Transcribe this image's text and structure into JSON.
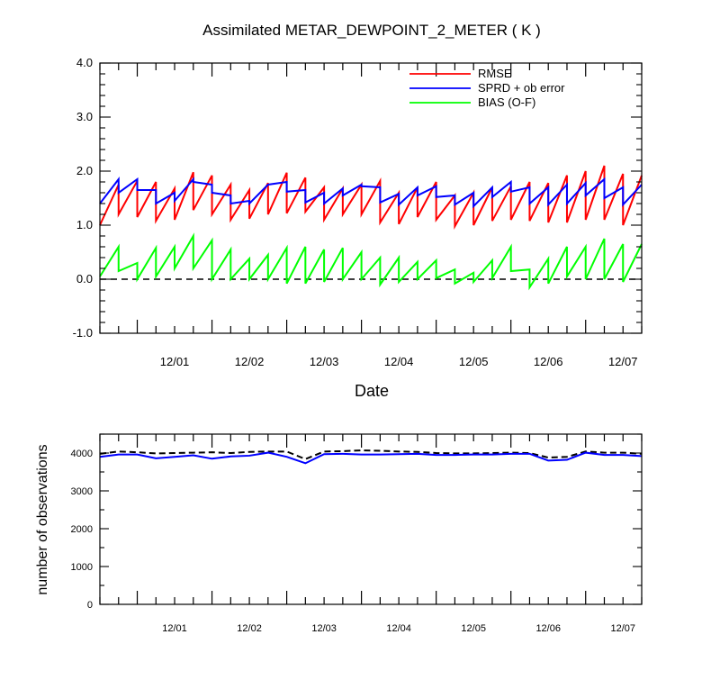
{
  "chart_data": [
    {
      "type": "line",
      "title": "Assimilated METAR_DEWPOINT_2_METER ( K )",
      "xlabel": "Date",
      "ylabel": "",
      "ylim": [
        -1.0,
        4.0
      ],
      "yticks": [
        "-1.0",
        "0.0",
        "1.0",
        "2.0",
        "3.0",
        "4.0"
      ],
      "xlim": [
        "11/30 12:00",
        "12/07 18:00"
      ],
      "xticks": [
        "12/01",
        "12/02",
        "12/03",
        "12/04",
        "12/05",
        "12/06",
        "12/07"
      ],
      "legend_position": "top-right",
      "reference_line": {
        "y": 0.0,
        "style": "dashed"
      },
      "series": [
        {
          "name": "RMSE",
          "color": "#ff0000",
          "times": [
            "11/30 12:00",
            "11/30 18:00",
            "11/30 18:00",
            "12/01 00:00",
            "12/01 00:00",
            "12/01 06:00",
            "12/01 06:00",
            "12/01 12:00",
            "12/01 12:00",
            "12/01 18:00",
            "12/01 18:00",
            "12/02 00:00",
            "12/02 00:00",
            "12/02 06:00",
            "12/02 06:00",
            "12/02 12:00",
            "12/02 12:00",
            "12/02 18:00",
            "12/02 18:00",
            "12/03 00:00",
            "12/03 00:00",
            "12/03 06:00",
            "12/03 06:00",
            "12/03 12:00",
            "12/03 12:00",
            "12/03 18:00",
            "12/03 18:00",
            "12/04 00:00",
            "12/04 00:00",
            "12/04 06:00",
            "12/04 06:00",
            "12/04 12:00",
            "12/04 12:00",
            "12/04 18:00",
            "12/04 18:00",
            "12/05 00:00",
            "12/05 00:00",
            "12/05 06:00",
            "12/05 06:00",
            "12/05 12:00",
            "12/05 12:00",
            "12/05 18:00",
            "12/05 18:00",
            "12/06 00:00",
            "12/06 00:00",
            "12/06 06:00",
            "12/06 06:00",
            "12/06 12:00",
            "12/06 12:00",
            "12/06 18:00",
            "12/06 18:00",
            "12/07 00:00",
            "12/07 00:00",
            "12/07 06:00",
            "12/07 06:00",
            "12/07 12:00",
            "12/07 12:00",
            "12/07 18:00"
          ],
          "values": [
            1.0,
            1.75,
            1.2,
            1.82,
            1.15,
            1.8,
            1.08,
            1.68,
            1.1,
            1.98,
            1.28,
            1.92,
            1.2,
            1.75,
            1.1,
            1.65,
            1.12,
            1.78,
            1.2,
            1.97,
            1.22,
            1.88,
            1.25,
            1.7,
            1.1,
            1.68,
            1.2,
            1.75,
            1.2,
            1.82,
            1.05,
            1.6,
            1.02,
            1.7,
            1.15,
            1.8,
            1.1,
            1.55,
            0.98,
            1.6,
            1.0,
            1.7,
            1.08,
            1.72,
            1.1,
            1.8,
            1.08,
            1.78,
            1.05,
            1.92,
            1.05,
            2.0,
            1.1,
            2.1,
            1.1,
            1.95,
            1.0,
            1.92
          ]
        },
        {
          "name": "SPRD + ob error",
          "color": "#0000ff",
          "times": [
            "11/30 12:00",
            "11/30 18:00",
            "11/30 18:00",
            "12/01 00:00",
            "12/01 00:00",
            "12/01 06:00",
            "12/01 06:00",
            "12/01 12:00",
            "12/01 12:00",
            "12/01 18:00",
            "12/01 18:00",
            "12/02 00:00",
            "12/02 00:00",
            "12/02 06:00",
            "12/02 06:00",
            "12/02 12:00",
            "12/02 12:00",
            "12/02 18:00",
            "12/02 18:00",
            "12/03 00:00",
            "12/03 00:00",
            "12/03 06:00",
            "12/03 06:00",
            "12/03 12:00",
            "12/03 12:00",
            "12/03 18:00",
            "12/03 18:00",
            "12/04 00:00",
            "12/04 00:00",
            "12/04 06:00",
            "12/04 06:00",
            "12/04 12:00",
            "12/04 12:00",
            "12/04 18:00",
            "12/04 18:00",
            "12/05 00:00",
            "12/05 00:00",
            "12/05 06:00",
            "12/05 06:00",
            "12/05 12:00",
            "12/05 12:00",
            "12/05 18:00",
            "12/05 18:00",
            "12/06 00:00",
            "12/06 00:00",
            "12/06 06:00",
            "12/06 06:00",
            "12/06 12:00",
            "12/06 12:00",
            "12/06 18:00",
            "12/06 18:00",
            "12/07 00:00",
            "12/07 00:00",
            "12/07 06:00",
            "12/07 06:00",
            "12/07 12:00",
            "12/07 12:00",
            "12/07 18:00"
          ],
          "values": [
            1.4,
            1.85,
            1.6,
            1.85,
            1.65,
            1.65,
            1.4,
            1.6,
            1.45,
            1.85,
            1.8,
            1.75,
            1.6,
            1.55,
            1.4,
            1.45,
            1.4,
            1.75,
            1.75,
            1.8,
            1.62,
            1.65,
            1.42,
            1.6,
            1.4,
            1.68,
            1.55,
            1.75,
            1.72,
            1.7,
            1.42,
            1.58,
            1.38,
            1.7,
            1.55,
            1.72,
            1.52,
            1.55,
            1.38,
            1.6,
            1.35,
            1.7,
            1.52,
            1.8,
            1.62,
            1.7,
            1.4,
            1.7,
            1.38,
            1.75,
            1.4,
            1.78,
            1.55,
            1.85,
            1.5,
            1.7,
            1.38,
            1.75
          ]
        },
        {
          "name": "BIAS (O-F)",
          "color": "#00ff00",
          "times": [
            "11/30 12:00",
            "11/30 18:00",
            "11/30 18:00",
            "12/01 00:00",
            "12/01 00:00",
            "12/01 06:00",
            "12/01 06:00",
            "12/01 12:00",
            "12/01 12:00",
            "12/01 18:00",
            "12/01 18:00",
            "12/02 00:00",
            "12/02 00:00",
            "12/02 06:00",
            "12/02 06:00",
            "12/02 12:00",
            "12/02 12:00",
            "12/02 18:00",
            "12/02 18:00",
            "12/03 00:00",
            "12/03 00:00",
            "12/03 06:00",
            "12/03 06:00",
            "12/03 12:00",
            "12/03 12:00",
            "12/03 18:00",
            "12/03 18:00",
            "12/04 00:00",
            "12/04 00:00",
            "12/04 06:00",
            "12/04 06:00",
            "12/04 12:00",
            "12/04 12:00",
            "12/04 18:00",
            "12/04 18:00",
            "12/05 00:00",
            "12/05 00:00",
            "12/05 06:00",
            "12/05 06:00",
            "12/05 12:00",
            "12/05 12:00",
            "12/05 18:00",
            "12/05 18:00",
            "12/06 00:00",
            "12/06 00:00",
            "12/06 06:00",
            "12/06 06:00",
            "12/06 12:00",
            "12/06 12:00",
            "12/06 18:00",
            "12/06 18:00",
            "12/07 00:00",
            "12/07 00:00",
            "12/07 06:00",
            "12/07 06:00",
            "12/07 12:00",
            "12/07 12:00",
            "12/07 18:00"
          ],
          "values": [
            0.05,
            0.6,
            0.15,
            0.3,
            0.0,
            0.58,
            0.05,
            0.6,
            0.2,
            0.8,
            0.2,
            0.72,
            0.0,
            0.55,
            0.0,
            0.38,
            0.0,
            0.45,
            0.0,
            0.58,
            -0.08,
            0.6,
            -0.08,
            0.55,
            -0.05,
            0.58,
            0.0,
            0.5,
            0.0,
            0.4,
            -0.1,
            0.4,
            -0.05,
            0.32,
            0.0,
            0.35,
            0.02,
            0.18,
            -0.08,
            0.12,
            -0.05,
            0.35,
            0.02,
            0.6,
            0.15,
            0.18,
            -0.15,
            0.38,
            -0.08,
            0.6,
            0.05,
            0.6,
            0.0,
            0.75,
            0.0,
            0.65,
            -0.05,
            0.65
          ]
        }
      ]
    },
    {
      "type": "line",
      "title": "",
      "xlabel": "",
      "ylabel": "number of observations",
      "ylim": [
        0,
        4500
      ],
      "yticks": [
        "0",
        "1000",
        "2000",
        "3000",
        "4000"
      ],
      "xlim": [
        "11/30 12:00",
        "12/07 18:00"
      ],
      "xticks": [
        "12/01",
        "12/02",
        "12/03",
        "12/04",
        "12/05",
        "12/06",
        "12/07"
      ],
      "series": [
        {
          "name": "",
          "color": "#000000",
          "style": "dashed",
          "times": [
            "11/30 12:00",
            "11/30 18:00",
            "12/01 00:00",
            "12/01 06:00",
            "12/01 12:00",
            "12/01 18:00",
            "12/02 00:00",
            "12/02 06:00",
            "12/02 12:00",
            "12/02 18:00",
            "12/03 00:00",
            "12/03 06:00",
            "12/03 12:00",
            "12/03 18:00",
            "12/04 00:00",
            "12/04 06:00",
            "12/04 12:00",
            "12/04 18:00",
            "12/05 00:00",
            "12/05 06:00",
            "12/05 12:00",
            "12/05 18:00",
            "12/06 00:00",
            "12/06 06:00",
            "12/06 12:00",
            "12/06 18:00",
            "12/07 00:00",
            "12/07 06:00",
            "12/07 12:00",
            "12/07 18:00"
          ],
          "values": [
            3980,
            4040,
            4020,
            3990,
            4000,
            4010,
            4020,
            4000,
            4030,
            4040,
            4040,
            3840,
            4040,
            4050,
            4070,
            4060,
            4040,
            4030,
            4000,
            3990,
            3990,
            4000,
            4010,
            4000,
            3880,
            3900,
            4040,
            4010,
            4010,
            3980
          ]
        },
        {
          "name": "",
          "color": "#0000ff",
          "style": "solid",
          "times": [
            "11/30 12:00",
            "11/30 18:00",
            "12/01 00:00",
            "12/01 06:00",
            "12/01 12:00",
            "12/01 18:00",
            "12/02 00:00",
            "12/02 06:00",
            "12/02 12:00",
            "12/02 18:00",
            "12/03 00:00",
            "12/03 06:00",
            "12/03 12:00",
            "12/03 18:00",
            "12/04 00:00",
            "12/04 06:00",
            "12/04 12:00",
            "12/04 18:00",
            "12/05 00:00",
            "12/05 06:00",
            "12/05 12:00",
            "12/05 18:00",
            "12/06 00:00",
            "12/06 06:00",
            "12/06 12:00",
            "12/06 18:00",
            "12/07 00:00",
            "12/07 06:00",
            "12/07 12:00",
            "12/07 18:00"
          ],
          "values": [
            3900,
            3960,
            3960,
            3860,
            3900,
            3940,
            3850,
            3910,
            3930,
            4010,
            3900,
            3730,
            3970,
            3980,
            3960,
            3960,
            3970,
            3980,
            3950,
            3950,
            3960,
            3960,
            3980,
            3980,
            3800,
            3820,
            4010,
            3950,
            3950,
            3920
          ]
        }
      ]
    }
  ]
}
